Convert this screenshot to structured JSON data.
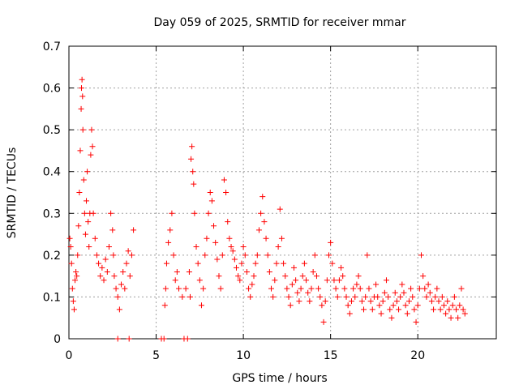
{
  "chart_data": {
    "type": "scatter",
    "title": "Day 059 of 2025, SRMTID for receiver mmar",
    "xlabel": "GPS time / hours",
    "ylabel": "SRMTID / TECUs",
    "xlim": [
      0,
      24.5
    ],
    "ylim": [
      0,
      0.7
    ],
    "x_ticks": [
      0,
      5,
      10,
      15,
      20
    ],
    "x_tick_labels": [
      "0",
      "5",
      "10",
      "15",
      "20"
    ],
    "y_ticks": [
      0,
      0.1,
      0.2,
      0.3,
      0.4,
      0.5,
      0.6,
      0.7
    ],
    "y_tick_labels": [
      "0",
      "0.1",
      "0.2",
      "0.3",
      "0.4",
      "0.5",
      "0.6",
      "0.7"
    ],
    "grid": true,
    "marker": "+",
    "series": [
      {
        "name": "SRMTID",
        "color": "#ff0000",
        "points": [
          [
            0.05,
            0.24
          ],
          [
            0.1,
            0.22
          ],
          [
            0.15,
            0.18
          ],
          [
            0.2,
            0.12
          ],
          [
            0.25,
            0.09
          ],
          [
            0.3,
            0.07
          ],
          [
            0.35,
            0.14
          ],
          [
            0.4,
            0.16
          ],
          [
            0.45,
            0.15
          ],
          [
            0.5,
            0.2
          ],
          [
            0.55,
            0.27
          ],
          [
            0.6,
            0.35
          ],
          [
            0.65,
            0.45
          ],
          [
            0.7,
            0.55
          ],
          [
            0.72,
            0.6
          ],
          [
            0.75,
            0.62
          ],
          [
            0.78,
            0.58
          ],
          [
            0.8,
            0.5
          ],
          [
            0.85,
            0.38
          ],
          [
            0.9,
            0.3
          ],
          [
            0.95,
            0.25
          ],
          [
            1.0,
            0.33
          ],
          [
            1.05,
            0.4
          ],
          [
            1.1,
            0.28
          ],
          [
            1.15,
            0.22
          ],
          [
            1.2,
            0.3
          ],
          [
            1.25,
            0.44
          ],
          [
            1.3,
            0.5
          ],
          [
            1.35,
            0.46
          ],
          [
            1.4,
            0.3
          ],
          [
            1.5,
            0.24
          ],
          [
            1.6,
            0.2
          ],
          [
            1.7,
            0.18
          ],
          [
            1.8,
            0.15
          ],
          [
            1.9,
            0.17
          ],
          [
            2.0,
            0.14
          ],
          [
            2.1,
            0.19
          ],
          [
            2.2,
            0.16
          ],
          [
            2.3,
            0.22
          ],
          [
            2.4,
            0.3
          ],
          [
            2.5,
            0.26
          ],
          [
            2.55,
            0.2
          ],
          [
            2.6,
            0.15
          ],
          [
            2.7,
            0.12
          ],
          [
            2.8,
            0.1
          ],
          [
            2.9,
            0.07
          ],
          [
            3.0,
            0.13
          ],
          [
            3.1,
            0.16
          ],
          [
            3.2,
            0.12
          ],
          [
            3.3,
            0.18
          ],
          [
            3.4,
            0.21
          ],
          [
            3.5,
            0.15
          ],
          [
            3.6,
            0.2
          ],
          [
            3.7,
            0.26
          ],
          [
            2.8,
            0.0
          ],
          [
            3.45,
            0.0
          ],
          [
            5.3,
            0.0
          ],
          [
            5.45,
            0.0
          ],
          [
            5.5,
            0.08
          ],
          [
            5.55,
            0.12
          ],
          [
            5.6,
            0.18
          ],
          [
            5.7,
            0.23
          ],
          [
            5.8,
            0.26
          ],
          [
            5.9,
            0.3
          ],
          [
            6.0,
            0.2
          ],
          [
            6.1,
            0.14
          ],
          [
            6.2,
            0.16
          ],
          [
            6.3,
            0.12
          ],
          [
            6.5,
            0.1
          ],
          [
            6.6,
            0.0
          ],
          [
            6.7,
            0.12
          ],
          [
            6.8,
            0.0
          ],
          [
            6.9,
            0.16
          ],
          [
            6.95,
            0.1
          ],
          [
            7.0,
            0.43
          ],
          [
            7.05,
            0.46
          ],
          [
            7.1,
            0.4
          ],
          [
            7.15,
            0.37
          ],
          [
            7.2,
            0.3
          ],
          [
            7.3,
            0.22
          ],
          [
            7.4,
            0.18
          ],
          [
            7.5,
            0.14
          ],
          [
            7.6,
            0.08
          ],
          [
            7.7,
            0.12
          ],
          [
            7.8,
            0.2
          ],
          [
            7.9,
            0.24
          ],
          [
            8.0,
            0.3
          ],
          [
            8.1,
            0.35
          ],
          [
            8.2,
            0.33
          ],
          [
            8.3,
            0.27
          ],
          [
            8.4,
            0.23
          ],
          [
            8.5,
            0.19
          ],
          [
            8.6,
            0.15
          ],
          [
            8.7,
            0.12
          ],
          [
            8.8,
            0.2
          ],
          [
            8.9,
            0.38
          ],
          [
            9.0,
            0.35
          ],
          [
            9.1,
            0.28
          ],
          [
            9.2,
            0.24
          ],
          [
            9.3,
            0.22
          ],
          [
            9.4,
            0.21
          ],
          [
            9.5,
            0.19
          ],
          [
            9.6,
            0.17
          ],
          [
            9.7,
            0.15
          ],
          [
            9.8,
            0.14
          ],
          [
            9.9,
            0.18
          ],
          [
            10.0,
            0.22
          ],
          [
            10.1,
            0.2
          ],
          [
            10.2,
            0.16
          ],
          [
            10.3,
            0.12
          ],
          [
            10.4,
            0.1
          ],
          [
            10.5,
            0.13
          ],
          [
            10.6,
            0.15
          ],
          [
            10.7,
            0.18
          ],
          [
            10.8,
            0.2
          ],
          [
            10.9,
            0.26
          ],
          [
            11.0,
            0.3
          ],
          [
            11.1,
            0.34
          ],
          [
            11.2,
            0.28
          ],
          [
            11.3,
            0.24
          ],
          [
            11.4,
            0.2
          ],
          [
            11.5,
            0.16
          ],
          [
            11.6,
            0.12
          ],
          [
            11.7,
            0.1
          ],
          [
            11.8,
            0.14
          ],
          [
            11.9,
            0.18
          ],
          [
            12.0,
            0.22
          ],
          [
            12.1,
            0.31
          ],
          [
            12.2,
            0.24
          ],
          [
            12.3,
            0.18
          ],
          [
            12.4,
            0.15
          ],
          [
            12.5,
            0.12
          ],
          [
            12.6,
            0.1
          ],
          [
            12.7,
            0.08
          ],
          [
            12.8,
            0.13
          ],
          [
            12.9,
            0.17
          ],
          [
            13.0,
            0.14
          ],
          [
            13.1,
            0.11
          ],
          [
            13.2,
            0.09
          ],
          [
            13.3,
            0.12
          ],
          [
            13.4,
            0.15
          ],
          [
            13.5,
            0.18
          ],
          [
            13.6,
            0.14
          ],
          [
            13.7,
            0.11
          ],
          [
            13.8,
            0.09
          ],
          [
            13.9,
            0.12
          ],
          [
            14.0,
            0.16
          ],
          [
            14.1,
            0.2
          ],
          [
            14.2,
            0.15
          ],
          [
            14.3,
            0.12
          ],
          [
            14.4,
            0.1
          ],
          [
            14.5,
            0.08
          ],
          [
            14.6,
            0.04
          ],
          [
            14.7,
            0.09
          ],
          [
            14.8,
            0.14
          ],
          [
            14.9,
            0.2
          ],
          [
            15.0,
            0.23
          ],
          [
            15.1,
            0.18
          ],
          [
            15.2,
            0.14
          ],
          [
            15.3,
            0.12
          ],
          [
            15.4,
            0.1
          ],
          [
            15.5,
            0.14
          ],
          [
            15.6,
            0.17
          ],
          [
            15.7,
            0.15
          ],
          [
            15.8,
            0.12
          ],
          [
            15.9,
            0.1
          ],
          [
            16.0,
            0.08
          ],
          [
            16.1,
            0.06
          ],
          [
            16.2,
            0.09
          ],
          [
            16.3,
            0.12
          ],
          [
            16.4,
            0.1
          ],
          [
            16.5,
            0.13
          ],
          [
            16.6,
            0.15
          ],
          [
            16.7,
            0.12
          ],
          [
            16.8,
            0.09
          ],
          [
            16.9,
            0.07
          ],
          [
            17.0,
            0.1
          ],
          [
            17.1,
            0.2
          ],
          [
            17.2,
            0.12
          ],
          [
            17.3,
            0.09
          ],
          [
            17.4,
            0.07
          ],
          [
            17.5,
            0.1
          ],
          [
            17.6,
            0.13
          ],
          [
            17.7,
            0.1
          ],
          [
            17.8,
            0.08
          ],
          [
            17.9,
            0.06
          ],
          [
            18.0,
            0.09
          ],
          [
            18.1,
            0.11
          ],
          [
            18.2,
            0.14
          ],
          [
            18.3,
            0.1
          ],
          [
            18.4,
            0.07
          ],
          [
            18.5,
            0.05
          ],
          [
            18.6,
            0.08
          ],
          [
            18.7,
            0.11
          ],
          [
            18.8,
            0.09
          ],
          [
            18.9,
            0.07
          ],
          [
            19.0,
            0.1
          ],
          [
            19.1,
            0.13
          ],
          [
            19.2,
            0.11
          ],
          [
            19.3,
            0.08
          ],
          [
            19.4,
            0.06
          ],
          [
            19.5,
            0.09
          ],
          [
            19.6,
            0.12
          ],
          [
            19.7,
            0.1
          ],
          [
            19.8,
            0.07
          ],
          [
            19.9,
            0.04
          ],
          [
            20.0,
            0.08
          ],
          [
            20.1,
            0.12
          ],
          [
            20.2,
            0.2
          ],
          [
            20.3,
            0.15
          ],
          [
            20.4,
            0.12
          ],
          [
            20.5,
            0.1
          ],
          [
            20.6,
            0.13
          ],
          [
            20.7,
            0.11
          ],
          [
            20.8,
            0.09
          ],
          [
            20.9,
            0.07
          ],
          [
            21.0,
            0.1
          ],
          [
            21.1,
            0.12
          ],
          [
            21.2,
            0.09
          ],
          [
            21.3,
            0.07
          ],
          [
            21.4,
            0.1
          ],
          [
            21.5,
            0.08
          ],
          [
            21.6,
            0.06
          ],
          [
            21.7,
            0.09
          ],
          [
            21.8,
            0.07
          ],
          [
            21.9,
            0.05
          ],
          [
            22.0,
            0.08
          ],
          [
            22.1,
            0.1
          ],
          [
            22.2,
            0.07
          ],
          [
            22.3,
            0.05
          ],
          [
            22.4,
            0.08
          ],
          [
            22.5,
            0.12
          ],
          [
            22.6,
            0.07
          ],
          [
            22.7,
            0.06
          ]
        ]
      }
    ]
  }
}
